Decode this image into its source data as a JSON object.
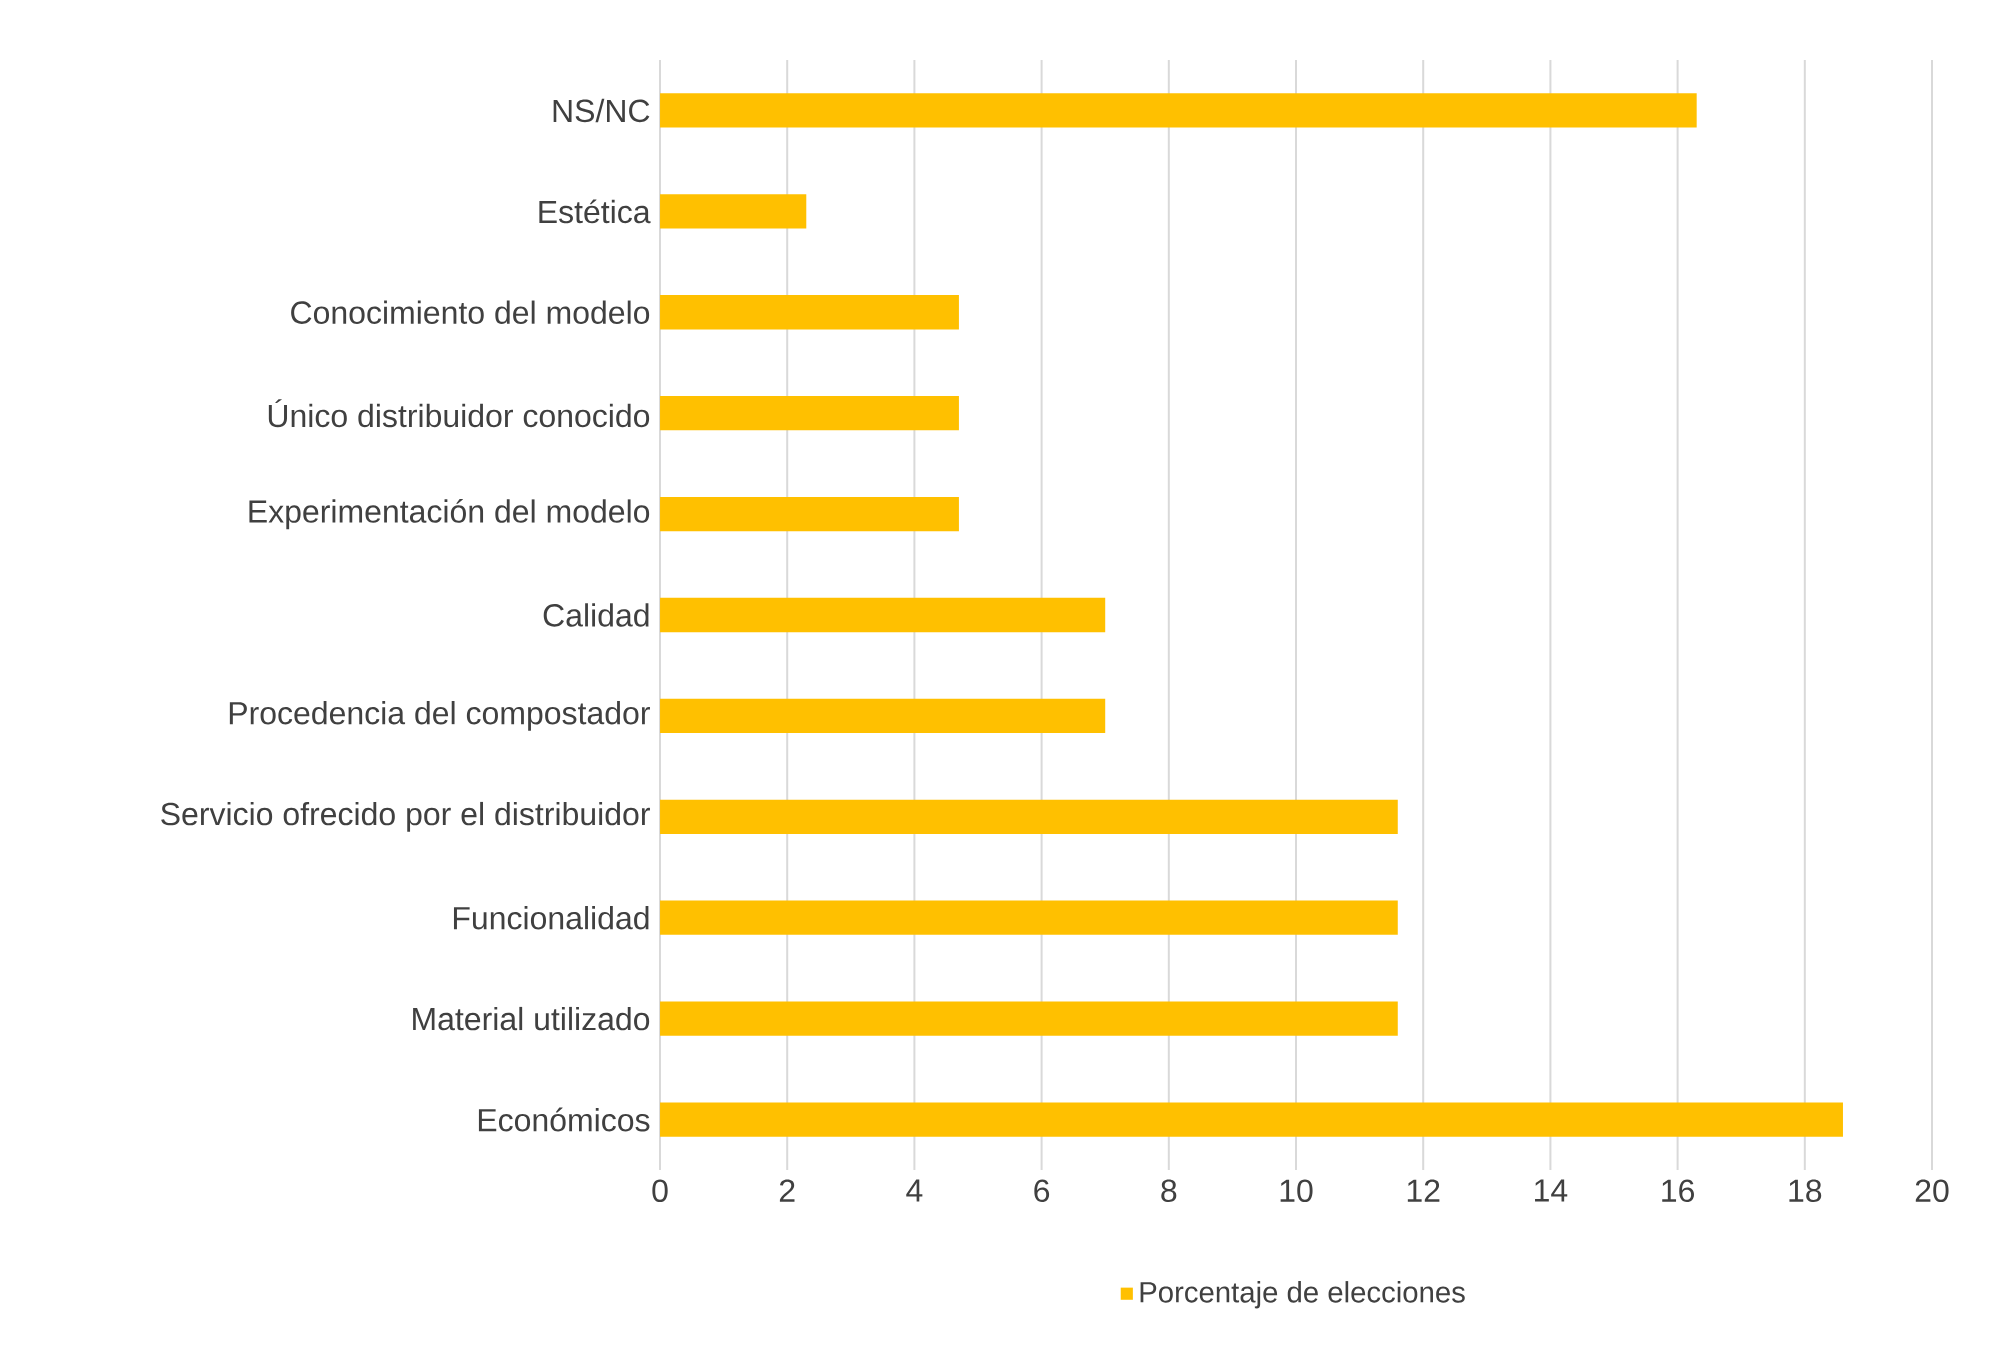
{
  "chart_data": {
    "type": "bar",
    "orientation": "horizontal",
    "categories": [
      "NS/NC",
      "Estética",
      "Conocimiento del modelo",
      "Único distribuidor conocido",
      "Experimentación del modelo",
      "Calidad",
      "Procedencia del compostador",
      "Servicio ofrecido por el distribuidor",
      "Funcionalidad",
      "Material utilizado",
      "Económicos"
    ],
    "series": [
      {
        "name": "Porcentaje de elecciones",
        "color": "#ffc000",
        "values": [
          16.3,
          2.3,
          4.7,
          4.7,
          4.7,
          7.0,
          7.0,
          11.6,
          11.6,
          11.6,
          18.6
        ]
      }
    ],
    "xlim": [
      0,
      20
    ],
    "xticks": [
      0,
      2,
      4,
      6,
      8,
      10,
      12,
      14,
      16,
      18,
      20
    ],
    "grid": "x",
    "legend": "bottom"
  }
}
